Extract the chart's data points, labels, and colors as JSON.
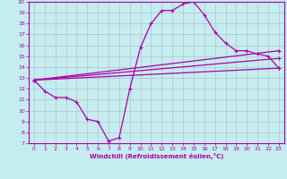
{
  "xlabel": "Windchill (Refroidissement éolien,°C)",
  "xlim": [
    -0.5,
    23.5
  ],
  "ylim": [
    7,
    20
  ],
  "xticks": [
    0,
    1,
    2,
    3,
    4,
    5,
    6,
    7,
    8,
    9,
    10,
    11,
    12,
    13,
    14,
    15,
    16,
    17,
    18,
    19,
    20,
    21,
    22,
    23
  ],
  "yticks": [
    7,
    8,
    9,
    10,
    11,
    12,
    13,
    14,
    15,
    16,
    17,
    18,
    19,
    20
  ],
  "bg_color": "#c5ecee",
  "line_color": "#aa00aa",
  "grid_color": "#aabbcc",
  "line1_x": [
    0,
    1,
    2,
    3,
    4,
    5,
    6,
    7,
    8,
    9,
    10,
    11,
    12,
    13,
    14,
    15,
    16,
    17,
    18,
    19,
    20,
    21,
    22,
    23
  ],
  "line1_y": [
    12.8,
    11.8,
    11.2,
    11.2,
    10.8,
    9.2,
    9.0,
    7.2,
    7.5,
    12.0,
    15.8,
    18.0,
    19.2,
    19.2,
    19.8,
    20.0,
    18.8,
    17.2,
    16.2,
    15.5,
    15.5,
    15.2,
    15.0,
    13.9
  ],
  "line2_x": [
    0,
    23
  ],
  "line2_y": [
    12.8,
    15.5
  ],
  "line3_x": [
    0,
    23
  ],
  "line3_y": [
    12.8,
    14.8
  ],
  "line4_x": [
    0,
    23
  ],
  "line4_y": [
    12.8,
    13.9
  ]
}
